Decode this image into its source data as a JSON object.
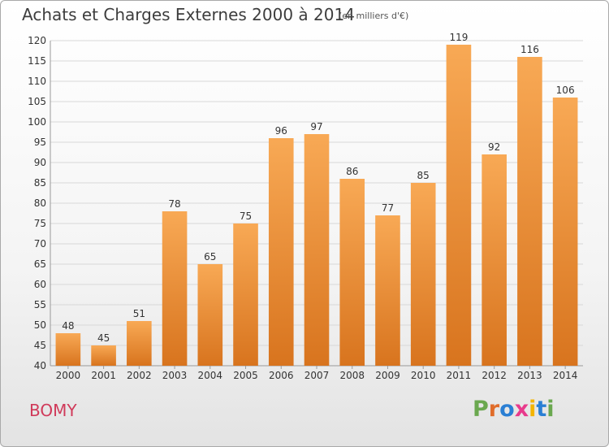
{
  "title": "Achats et Charges Externes 2000 à 2014",
  "subtitle": "(en milliers d'€)",
  "place": "BOMY",
  "logo": {
    "text": "Proxiti",
    "letter_colors": [
      "#6aa84f",
      "#e06c2a",
      "#2a7fd4",
      "#e83a8c",
      "#f4b400",
      "#2a7fd4",
      "#6aa84f"
    ]
  },
  "colors": {
    "bar_top": "#f8a955",
    "bar_bottom": "#d8741e",
    "grid": "#d8d8d8",
    "axis_text": "#333333"
  },
  "chart_data": {
    "type": "bar",
    "title": "Achats et Charges Externes 2000 à 2014",
    "subtitle": "(en milliers d'€)",
    "xlabel": "",
    "ylabel": "",
    "categories": [
      "2000",
      "2001",
      "2002",
      "2003",
      "2004",
      "2005",
      "2006",
      "2007",
      "2008",
      "2009",
      "2010",
      "2011",
      "2012",
      "2013",
      "2014"
    ],
    "values": [
      48,
      45,
      51,
      78,
      65,
      75,
      96,
      97,
      86,
      77,
      85,
      119,
      92,
      116,
      106
    ],
    "ylim": [
      40,
      120
    ],
    "yticks": [
      40,
      45,
      50,
      55,
      60,
      65,
      70,
      75,
      80,
      85,
      90,
      95,
      100,
      105,
      110,
      115,
      120
    ],
    "grid": true,
    "data_labels": true
  }
}
